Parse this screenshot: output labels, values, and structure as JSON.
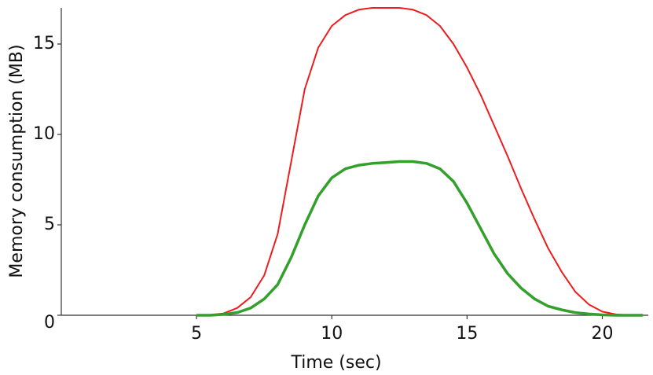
{
  "chart_data": {
    "type": "line",
    "xlabel": "Time (sec)",
    "ylabel": "Memory consumption (MB)",
    "x": [
      5,
      5.5,
      6,
      6.5,
      7,
      7.5,
      8,
      8.5,
      9,
      9.5,
      10,
      10.5,
      11,
      11.5,
      12,
      12.5,
      13,
      13.5,
      14,
      14.5,
      15,
      15.5,
      16,
      16.5,
      17,
      17.5,
      18,
      18.5,
      19,
      19.5,
      20,
      20.5,
      21,
      21.5
    ],
    "series": [
      {
        "color": "#ee1c1c",
        "width": 2,
        "values": [
          0,
          0.02,
          0.1,
          0.4,
          1.0,
          2.2,
          4.5,
          8.5,
          12.5,
          14.8,
          16.0,
          16.6,
          16.9,
          17,
          17,
          17,
          16.9,
          16.6,
          16.0,
          15.0,
          13.7,
          12.2,
          10.5,
          8.8,
          7.0,
          5.3,
          3.7,
          2.4,
          1.3,
          0.6,
          0.2,
          0.05,
          0,
          0
        ]
      },
      {
        "color": "#33a02c",
        "width": 3.5,
        "values": [
          0,
          0,
          0.05,
          0.15,
          0.4,
          0.9,
          1.7,
          3.2,
          5.0,
          6.6,
          7.6,
          8.1,
          8.3,
          8.4,
          8.45,
          8.5,
          8.5,
          8.4,
          8.1,
          7.4,
          6.2,
          4.8,
          3.4,
          2.3,
          1.5,
          0.9,
          0.5,
          0.3,
          0.15,
          0.07,
          0.02,
          0,
          0,
          0
        ]
      }
    ],
    "xlim": [
      0,
      21.7
    ],
    "xticks": [
      5,
      10,
      15,
      20
    ],
    "ylim": [
      0,
      17
    ],
    "yticks": [
      0,
      5,
      10,
      15
    ],
    "grid": false
  }
}
